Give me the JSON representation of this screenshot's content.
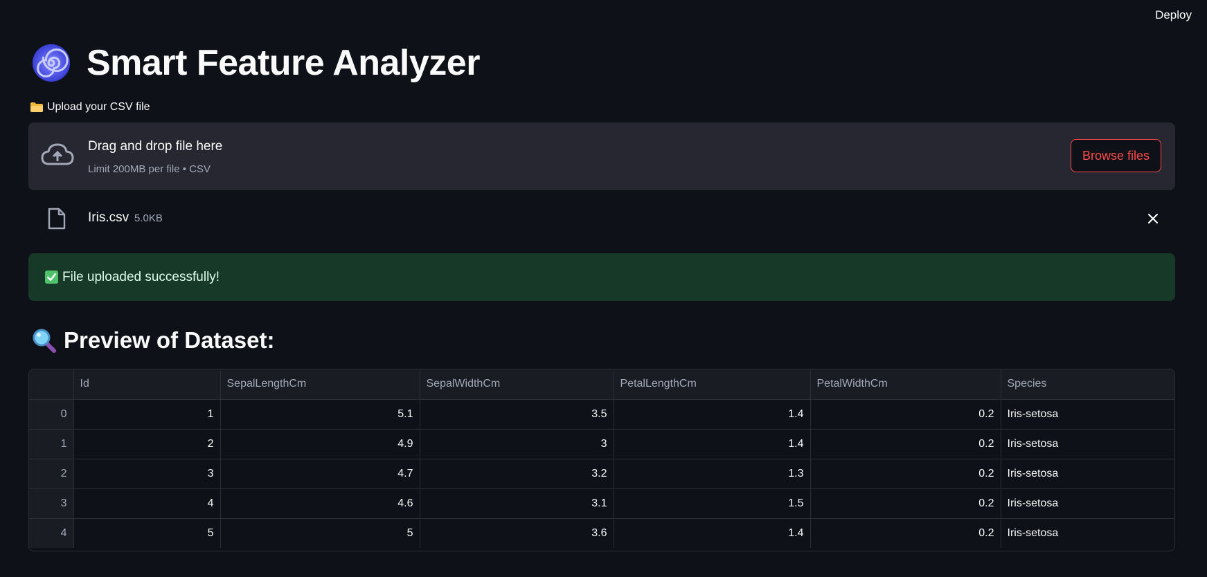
{
  "header": {
    "deploy_label": "Deploy"
  },
  "title": {
    "text": "Smart Feature Analyzer",
    "emoji_icon": "cyclone-icon"
  },
  "uploader": {
    "label": "Upload your CSV file",
    "label_icon": "folder-icon",
    "drop_title": "Drag and drop file here",
    "drop_limit": "Limit 200MB per file • CSV",
    "browse_label": "Browse files",
    "accent_color": "#ff4b4b"
  },
  "uploaded_file": {
    "name": "Iris.csv",
    "size": "5.0KB"
  },
  "success": {
    "text": "File uploaded successfully!",
    "icon": "check-mark-button-icon",
    "color": "#173928"
  },
  "preview": {
    "title": "Preview of Dataset:",
    "icon": "magnifying-glass-icon",
    "columns": [
      "",
      "Id",
      "SepalLengthCm",
      "SepalWidthCm",
      "PetalLengthCm",
      "PetalWidthCm",
      "Species"
    ],
    "rows": [
      [
        "0",
        "1",
        "5.1",
        "3.5",
        "1.4",
        "0.2",
        "Iris-setosa"
      ],
      [
        "1",
        "2",
        "4.9",
        "3",
        "1.4",
        "0.2",
        "Iris-setosa"
      ],
      [
        "2",
        "3",
        "4.7",
        "3.2",
        "1.3",
        "0.2",
        "Iris-setosa"
      ],
      [
        "3",
        "4",
        "4.6",
        "3.1",
        "1.5",
        "0.2",
        "Iris-setosa"
      ],
      [
        "4",
        "5",
        "5",
        "3.6",
        "1.4",
        "0.2",
        "Iris-setosa"
      ]
    ]
  }
}
